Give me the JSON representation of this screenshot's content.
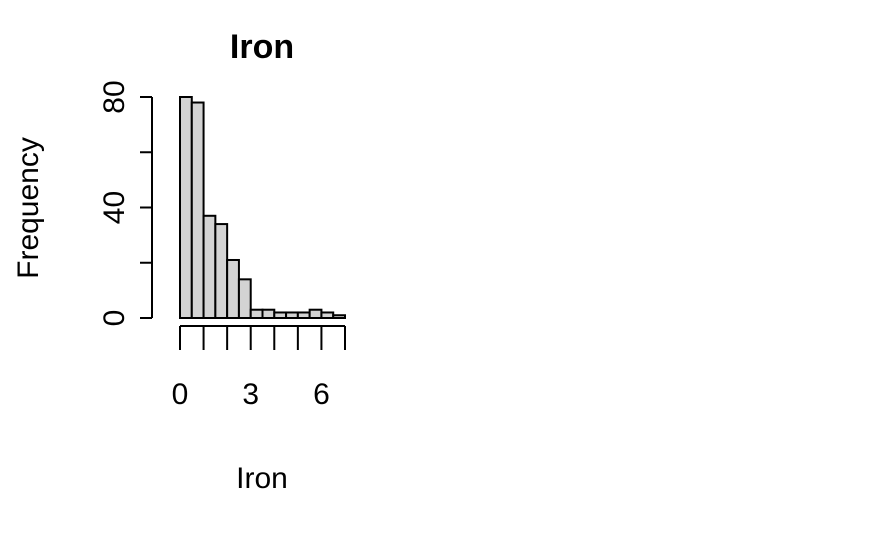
{
  "chart_data": {
    "type": "bar",
    "title": "Iron",
    "xlabel": "Iron",
    "ylabel": "Frequency",
    "bin_edges": [
      0,
      0.5,
      1,
      1.5,
      2,
      2.5,
      3,
      3.5,
      4,
      4.5,
      5,
      5.5,
      6,
      6.5,
      7
    ],
    "values": [
      80,
      78,
      37,
      34,
      21,
      14,
      3,
      3,
      2,
      2,
      2,
      3,
      2,
      1
    ],
    "xlim": [
      0,
      7
    ],
    "ylim": [
      0,
      80
    ],
    "x_ticks": [
      0,
      1,
      2,
      3,
      4,
      5,
      6,
      7
    ],
    "x_tick_labels": [
      "0",
      "",
      "",
      "3",
      "",
      "",
      "6",
      ""
    ],
    "y_ticks": [
      0,
      20,
      40,
      60,
      80
    ],
    "y_tick_labels": [
      "0",
      "",
      "40",
      "",
      "80"
    ],
    "bar_color": "#d3d3d3",
    "grid": false,
    "legend": "none"
  }
}
